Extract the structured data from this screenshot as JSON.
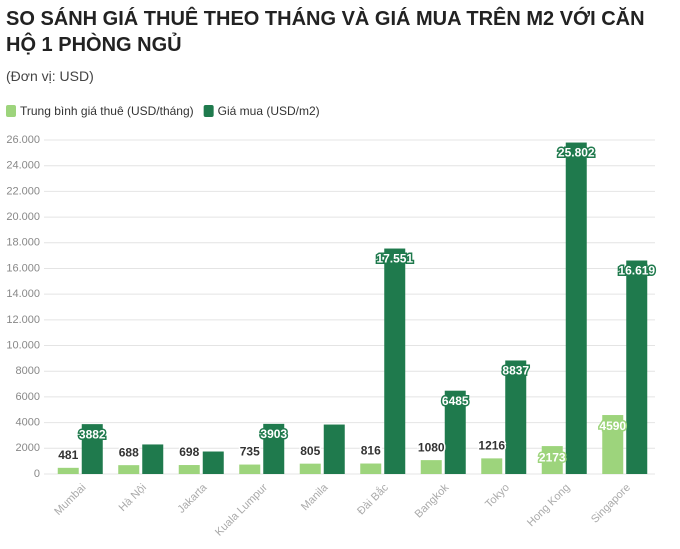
{
  "chart_data": {
    "type": "bar",
    "title": "SO SÁNH GIÁ THUÊ THEO THÁNG VÀ GIÁ MUA TRÊN M2 VỚI CĂN HỘ 1 PHÒNG NGỦ",
    "subtitle": "(Đơn vị: USD)",
    "categories": [
      "Mumbai",
      "Hà Nội",
      "Jakarta",
      "Kuala Lumpur",
      "Manila",
      "Đài Bắc",
      "Bangkok",
      "Tokyo",
      "Hong Kong",
      "Singapore"
    ],
    "series": [
      {
        "name": "Trung bình giá thuê (USD/tháng)",
        "color": "#9dd47c",
        "values": [
          481,
          688,
          698,
          735,
          805,
          816,
          1080,
          1216,
          2173,
          4590
        ]
      },
      {
        "name": "Giá mua (USD/m2)",
        "color": "#1f7a4d",
        "values": [
          3882,
          2300,
          1750,
          3903,
          3850,
          17551,
          6485,
          8837,
          25802,
          16619
        ],
        "value_labels": [
          "3882",
          null,
          null,
          "3903",
          null,
          "17.551",
          "6485",
          "8837",
          "25.802",
          "16.619"
        ]
      }
    ],
    "ylim": [
      0,
      26000
    ],
    "yticks": [
      0,
      2000,
      4000,
      6000,
      8000,
      {
        "value": 10000,
        "label": "10.000"
      },
      {
        "value": 12000,
        "label": "12.000"
      },
      {
        "value": 14000,
        "label": "14.000"
      },
      {
        "value": 16000,
        "label": "16.000"
      },
      {
        "value": 18000,
        "label": "18.000"
      },
      {
        "value": 20000,
        "label": "20.000"
      },
      {
        "value": 22000,
        "label": "22.000"
      },
      {
        "value": 24000,
        "label": "24.000"
      },
      {
        "value": 26000,
        "label": "26.000"
      }
    ],
    "grid": true
  }
}
